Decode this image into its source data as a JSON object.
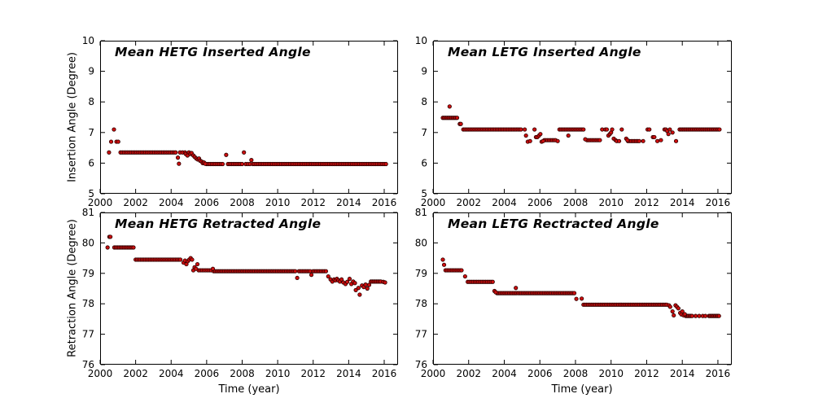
{
  "figure": {
    "background": "#ffffff",
    "axis_color": "#000000",
    "marker_fill": "#cc0e0e",
    "marker_edge": "#2a0000"
  },
  "chart_data": [
    {
      "type": "scatter",
      "title": "Mean HETG Inserted Angle",
      "ylabel": "Insertion Angle (Degree)",
      "xlabel": "",
      "xlim": [
        2000,
        2016.78
      ],
      "ylim": [
        5,
        10
      ],
      "xticks": [
        2000,
        2002,
        2004,
        2006,
        2008,
        2010,
        2012,
        2014,
        2016
      ],
      "yticks": [
        5,
        6,
        7,
        8,
        9,
        10
      ],
      "grid": false,
      "runs": [
        [
          2001.15,
          2004.3,
          0.1,
          6.35
        ],
        [
          2004.5,
          2004.78,
          0.14,
          6.35
        ],
        [
          2006.0,
          2006.95,
          0.1,
          5.97
        ],
        [
          2007.2,
          2008.0,
          0.1,
          5.97
        ],
        [
          2008.2,
          2008.45,
          0.12,
          5.97
        ],
        [
          2008.6,
          2016.1,
          0.1,
          5.97
        ]
      ],
      "points": [
        [
          2000.5,
          6.35
        ],
        [
          2000.62,
          6.7
        ],
        [
          2000.78,
          7.1
        ],
        [
          2000.92,
          6.7
        ],
        [
          2001.02,
          6.7
        ],
        [
          2004.38,
          6.18
        ],
        [
          2004.44,
          5.98
        ],
        [
          2004.82,
          6.3
        ],
        [
          2004.92,
          6.25
        ],
        [
          2005.0,
          6.35
        ],
        [
          2005.08,
          6.3
        ],
        [
          2005.15,
          6.33
        ],
        [
          2005.25,
          6.25
        ],
        [
          2005.33,
          6.2
        ],
        [
          2005.42,
          6.15
        ],
        [
          2005.5,
          6.12
        ],
        [
          2005.57,
          6.15
        ],
        [
          2005.63,
          6.08
        ],
        [
          2005.72,
          6.05
        ],
        [
          2005.78,
          6.0
        ],
        [
          2005.85,
          6.02
        ],
        [
          2005.92,
          5.98
        ],
        [
          2007.1,
          6.27
        ],
        [
          2008.1,
          6.35
        ],
        [
          2008.52,
          6.1
        ]
      ]
    },
    {
      "type": "scatter",
      "title": "Mean LETG Inserted Angle",
      "ylabel": "",
      "xlabel": "",
      "xlim": [
        2000,
        2016.78
      ],
      "ylim": [
        5,
        10
      ],
      "xticks": [
        2000,
        2002,
        2004,
        2006,
        2008,
        2010,
        2012,
        2014,
        2016
      ],
      "yticks": [
        5,
        6,
        7,
        8,
        9,
        10
      ],
      "grid": false,
      "runs": [
        [
          2000.55,
          2001.35,
          0.08,
          7.48
        ],
        [
          2001.7,
          2005.0,
          0.09,
          7.1
        ],
        [
          2006.25,
          2006.95,
          0.09,
          6.75
        ],
        [
          2007.1,
          2008.45,
          0.09,
          7.1
        ],
        [
          2008.65,
          2009.4,
          0.09,
          6.75
        ],
        [
          2010.95,
          2011.6,
          0.09,
          6.72
        ],
        [
          2013.85,
          2016.1,
          0.08,
          7.1
        ]
      ],
      "points": [
        [
          2000.93,
          7.85
        ],
        [
          2001.5,
          7.28
        ],
        [
          2001.56,
          7.28
        ],
        [
          2005.15,
          7.1
        ],
        [
          2005.22,
          6.9
        ],
        [
          2005.32,
          6.7
        ],
        [
          2005.45,
          6.72
        ],
        [
          2005.7,
          7.1
        ],
        [
          2005.78,
          6.85
        ],
        [
          2005.86,
          6.85
        ],
        [
          2005.95,
          6.9
        ],
        [
          2006.03,
          6.95
        ],
        [
          2006.1,
          6.7
        ],
        [
          2006.18,
          6.72
        ],
        [
          2007.0,
          6.72
        ],
        [
          2007.6,
          6.9
        ],
        [
          2008.55,
          6.78
        ],
        [
          2009.5,
          7.1
        ],
        [
          2009.68,
          7.1
        ],
        [
          2009.76,
          7.1
        ],
        [
          2009.85,
          6.9
        ],
        [
          2009.93,
          6.95
        ],
        [
          2010.0,
          7.0
        ],
        [
          2010.06,
          7.1
        ],
        [
          2010.15,
          6.8
        ],
        [
          2010.25,
          6.75
        ],
        [
          2010.32,
          6.72
        ],
        [
          2010.45,
          6.72
        ],
        [
          2010.6,
          7.1
        ],
        [
          2010.85,
          6.8
        ],
        [
          2010.92,
          6.75
        ],
        [
          2011.8,
          6.72
        ],
        [
          2012.05,
          7.1
        ],
        [
          2012.15,
          7.1
        ],
        [
          2012.35,
          6.85
        ],
        [
          2012.43,
          6.85
        ],
        [
          2012.6,
          6.72
        ],
        [
          2012.8,
          6.75
        ],
        [
          2013.0,
          7.1
        ],
        [
          2013.08,
          7.1
        ],
        [
          2013.15,
          7.05
        ],
        [
          2013.22,
          6.95
        ],
        [
          2013.3,
          7.1
        ],
        [
          2013.45,
          7.0
        ],
        [
          2013.65,
          6.72
        ]
      ]
    },
    {
      "type": "scatter",
      "title": "Mean HETG Retracted Angle",
      "ylabel": "Retraction Angle (Degree)",
      "xlabel": "Time (year)",
      "xlim": [
        2000,
        2016.78
      ],
      "ylim": [
        76,
        81
      ],
      "xticks": [
        2000,
        2002,
        2004,
        2006,
        2008,
        2010,
        2012,
        2014,
        2016
      ],
      "yticks": [
        76,
        77,
        78,
        79,
        80,
        81
      ],
      "grid": false,
      "runs": [
        [
          2000.8,
          2001.9,
          0.09,
          79.85
        ],
        [
          2002.0,
          2004.6,
          0.09,
          79.45
        ],
        [
          2005.55,
          2006.28,
          0.1,
          79.1
        ],
        [
          2006.4,
          2011.0,
          0.085,
          79.07
        ],
        [
          2011.2,
          2011.85,
          0.09,
          79.07
        ],
        [
          2012.0,
          2012.78,
          0.09,
          79.07
        ],
        [
          2015.25,
          2015.88,
          0.08,
          78.73
        ]
      ],
      "points": [
        [
          2000.42,
          79.85
        ],
        [
          2000.52,
          80.2
        ],
        [
          2000.58,
          80.2
        ],
        [
          2004.7,
          79.35
        ],
        [
          2004.78,
          79.42
        ],
        [
          2004.86,
          79.3
        ],
        [
          2004.94,
          79.4
        ],
        [
          2005.02,
          79.45
        ],
        [
          2005.1,
          79.5
        ],
        [
          2005.18,
          79.45
        ],
        [
          2005.25,
          79.1
        ],
        [
          2005.32,
          79.2
        ],
        [
          2005.4,
          79.15
        ],
        [
          2005.48,
          79.3
        ],
        [
          2006.35,
          79.15
        ],
        [
          2011.1,
          78.85
        ],
        [
          2011.9,
          78.95
        ],
        [
          2012.85,
          78.9
        ],
        [
          2012.98,
          78.8
        ],
        [
          2013.08,
          78.73
        ],
        [
          2013.18,
          78.8
        ],
        [
          2013.26,
          78.77
        ],
        [
          2013.34,
          78.82
        ],
        [
          2013.42,
          78.77
        ],
        [
          2013.5,
          78.73
        ],
        [
          2013.6,
          78.8
        ],
        [
          2013.7,
          78.7
        ],
        [
          2013.82,
          78.65
        ],
        [
          2013.92,
          78.72
        ],
        [
          2014.05,
          78.82
        ],
        [
          2014.15,
          78.65
        ],
        [
          2014.25,
          78.73
        ],
        [
          2014.35,
          78.68
        ],
        [
          2014.4,
          78.45
        ],
        [
          2014.55,
          78.52
        ],
        [
          2014.62,
          78.3
        ],
        [
          2014.75,
          78.6
        ],
        [
          2014.85,
          78.55
        ],
        [
          2014.95,
          78.63
        ],
        [
          2015.05,
          78.5
        ],
        [
          2015.15,
          78.62
        ],
        [
          2015.95,
          78.72
        ],
        [
          2016.05,
          78.7
        ]
      ]
    },
    {
      "type": "scatter",
      "title": "Mean LETG Rectracted Angle",
      "ylabel": "",
      "xlabel": "Time (year)",
      "xlim": [
        2000,
        2016.78
      ],
      "ylim": [
        76,
        81
      ],
      "xticks": [
        2000,
        2002,
        2004,
        2006,
        2008,
        2010,
        2012,
        2014,
        2016
      ],
      "yticks": [
        76,
        77,
        78,
        79,
        80,
        81
      ],
      "grid": false,
      "runs": [
        [
          2000.7,
          2001.6,
          0.09,
          79.1
        ],
        [
          2001.95,
          2003.35,
          0.1,
          78.72
        ],
        [
          2003.6,
          2007.95,
          0.085,
          78.35
        ],
        [
          2008.45,
          2013.15,
          0.085,
          77.97
        ],
        [
          2014.2,
          2014.55,
          0.07,
          77.6
        ],
        [
          2015.5,
          2016.1,
          0.07,
          77.6
        ]
      ],
      "points": [
        [
          2000.55,
          79.45
        ],
        [
          2000.62,
          79.28
        ],
        [
          2001.8,
          78.9
        ],
        [
          2003.45,
          78.42
        ],
        [
          2003.52,
          78.38
        ],
        [
          2004.65,
          78.52
        ],
        [
          2008.05,
          78.16
        ],
        [
          2008.35,
          78.17
        ],
        [
          2013.25,
          77.95
        ],
        [
          2013.32,
          77.9
        ],
        [
          2013.45,
          77.75
        ],
        [
          2013.52,
          77.62
        ],
        [
          2013.62,
          77.95
        ],
        [
          2013.7,
          77.9
        ],
        [
          2013.78,
          77.85
        ],
        [
          2013.88,
          77.7
        ],
        [
          2013.95,
          77.65
        ],
        [
          2014.0,
          77.75
        ],
        [
          2014.08,
          77.62
        ],
        [
          2014.14,
          77.66
        ],
        [
          2014.75,
          77.6
        ],
        [
          2014.95,
          77.6
        ],
        [
          2015.15,
          77.6
        ],
        [
          2015.3,
          77.6
        ]
      ]
    }
  ]
}
